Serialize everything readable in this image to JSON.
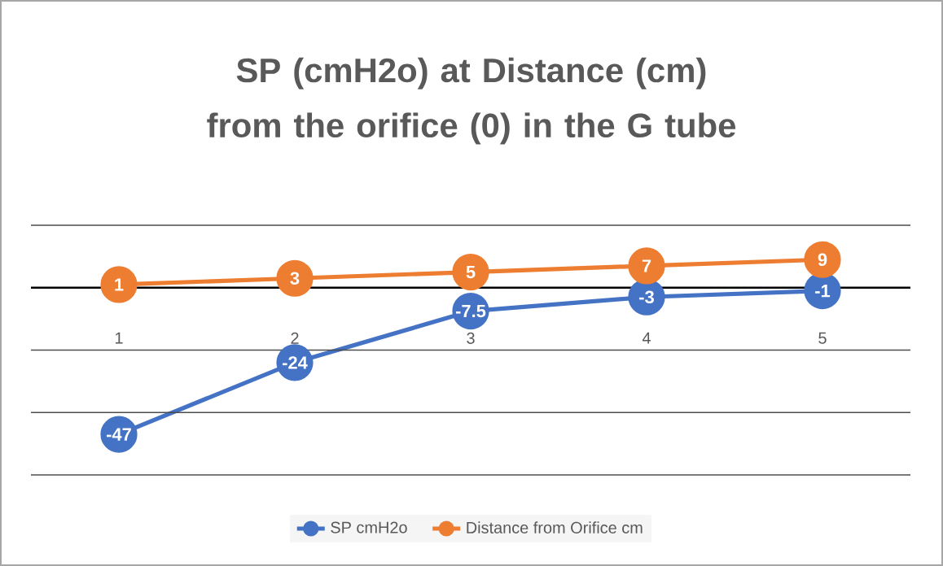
{
  "chart_data": {
    "type": "line",
    "title": "SP (cmH2o) at Distance (cm) from the orifice (0) in the G tube",
    "categories": [
      "1",
      "2",
      "3",
      "4",
      "5"
    ],
    "series": [
      {
        "name": "SP cmH2o",
        "color": "#4472c4",
        "values": [
          -47,
          -24,
          -7.5,
          -3,
          -1
        ]
      },
      {
        "name": "Distance from Orifice cm",
        "color": "#ed7d31",
        "values": [
          1,
          3,
          5,
          7,
          9
        ]
      }
    ],
    "ylim": [
      -60,
      20
    ],
    "yticks": [
      {
        "value": -60,
        "label": null
      },
      {
        "value": -40,
        "label": null
      },
      {
        "value": -20,
        "label": null
      },
      {
        "value": 0,
        "label": null
      },
      {
        "value": 20,
        "label": null
      }
    ],
    "tick_labels": "x",
    "grid": "y",
    "legend": "bottom",
    "marker": "circle",
    "line_style": "solid",
    "data_labels": true
  }
}
